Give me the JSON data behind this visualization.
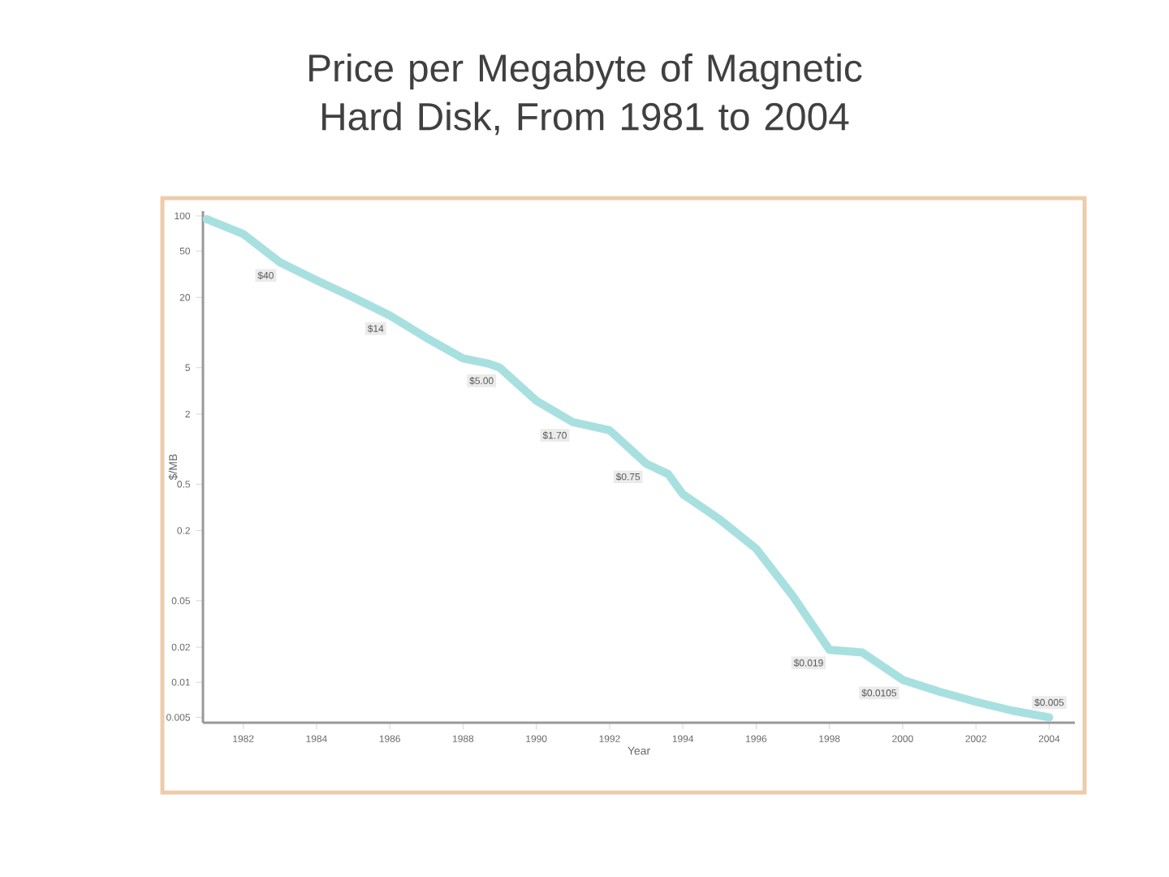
{
  "chart_data": {
    "type": "line",
    "title": "Price per Megabyte of Magnetic Hard Disk, From 1981 to 2004",
    "xlabel": "Year",
    "ylabel": "$/MB",
    "log": "y",
    "grid": false,
    "marker": "none",
    "line_style": "solid",
    "xlim": [
      1980.9,
      2004.7
    ],
    "xticks": [
      1982,
      1984,
      1986,
      1988,
      1990,
      1992,
      1994,
      1996,
      1998,
      2000,
      2002,
      2004
    ],
    "ylim": [
      0.0045,
      110
    ],
    "yticks": [
      0.005,
      0.01,
      0.02,
      0.05,
      0.2,
      0.5,
      2,
      5,
      20,
      50,
      100
    ],
    "series": [
      {
        "color": "#a8e0e0",
        "x": [
          1981,
          1982,
          1983,
          1984,
          1985,
          1986,
          1987,
          1988,
          1988.7,
          1989,
          1990,
          1991,
          1992,
          1993,
          1993.6,
          1994,
          1995,
          1996,
          1997,
          1998,
          1998.9,
          2000,
          2001,
          2002,
          2003,
          2004
        ],
        "values": [
          94,
          70,
          40,
          28,
          20,
          14,
          9,
          6,
          5.4,
          5.0,
          2.6,
          1.7,
          1.45,
          0.75,
          0.61,
          0.41,
          0.25,
          0.14,
          0.055,
          0.019,
          0.018,
          0.0105,
          0.0083,
          0.0068,
          0.0057,
          0.005
        ],
        "value_labels": [
          null,
          null,
          "$40",
          null,
          null,
          "$14",
          null,
          null,
          null,
          "$5.00",
          null,
          "$1.70",
          null,
          "$0.75",
          null,
          null,
          null,
          null,
          null,
          "$0.019",
          null,
          "$0.0105",
          null,
          null,
          null,
          "$0.005"
        ]
      }
    ]
  }
}
